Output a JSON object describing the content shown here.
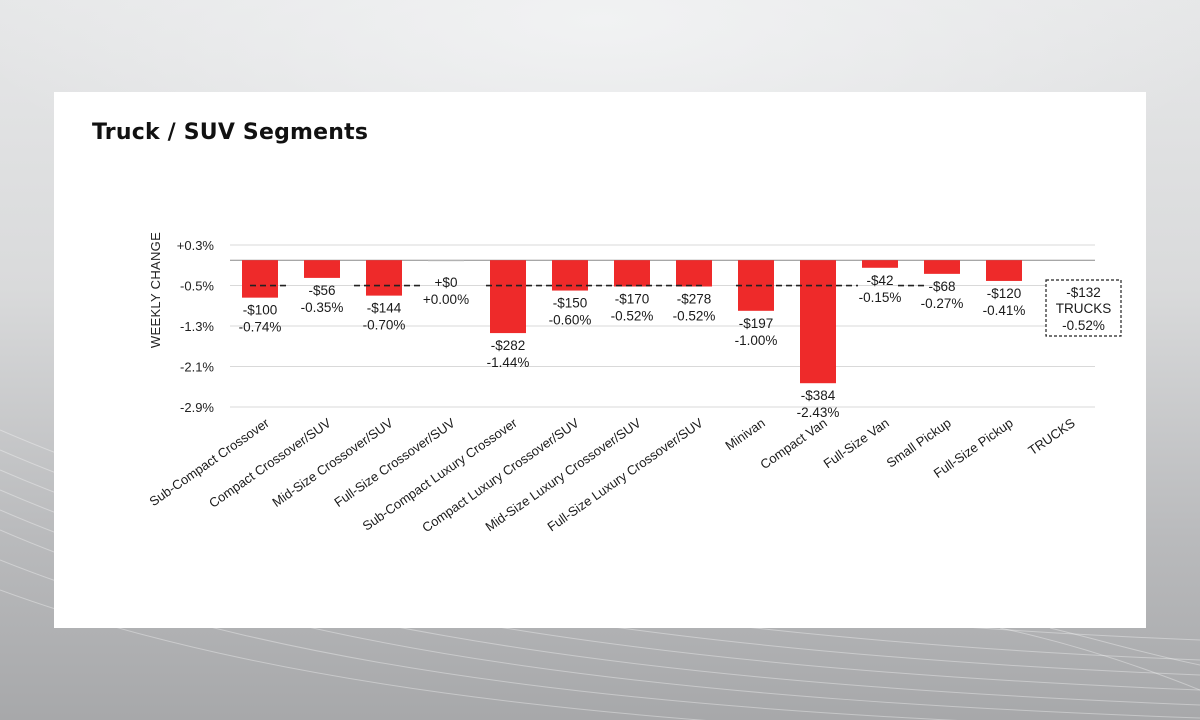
{
  "card": {
    "title": "Truck / SUV Segments"
  },
  "colors": {
    "bar": "#ee2a2a",
    "grid": "#d9d9d9",
    "zero_line": "#8a8a8a",
    "average_line": "#222222"
  },
  "chart_data": {
    "type": "bar",
    "title": "Truck / SUV Segments",
    "xlabel": "",
    "ylabel": "WEEKLY CHANGE",
    "ylim": [
      -2.9,
      0.3
    ],
    "y_ticks": [
      "+0.3%",
      "-0.5%",
      "-1.3%",
      "-2.1%",
      "-2.9%"
    ],
    "y_tick_values": [
      0.3,
      -0.5,
      -1.3,
      -2.1,
      -2.9
    ],
    "grid": true,
    "categories": [
      "Sub-Compact Crossover",
      "Compact Crossover/SUV",
      "Mid-Size Crossover/SUV",
      "Full-Size Crossover/SUV",
      "Sub-Compact Luxury Crossover",
      "Compact Luxury Crossover/SUV",
      "Mid-Size Luxury Crossover/SUV",
      "Full-Size Luxury Crossover/SUV",
      "Minivan",
      "Compact Van",
      "Full-Size Van",
      "Small Pickup",
      "Full-Size Pickup",
      "TRUCKS"
    ],
    "series": [
      {
        "name": "Weekly change (%)",
        "values": [
          -0.74,
          -0.35,
          -0.7,
          0.0,
          -1.44,
          -0.6,
          -0.52,
          -0.52,
          -1.0,
          -2.43,
          -0.15,
          -0.27,
          -0.41,
          null
        ]
      }
    ],
    "dollar_labels": [
      "-$100",
      "-$56",
      "-$144",
      "+$0",
      "-$282",
      "-$150",
      "-$170",
      "-$278",
      "-$197",
      "-$384",
      "-$42",
      "-$68",
      "-$120",
      "-$132"
    ],
    "percent_labels": [
      "-0.74%",
      "-0.35%",
      "-0.70%",
      "+0.00%",
      "-1.44%",
      "-0.60%",
      "-0.52%",
      "-0.52%",
      "-1.00%",
      "-2.43%",
      "-0.15%",
      "-0.27%",
      "-0.41%",
      "-0.52%"
    ],
    "average_line": {
      "label": "TRUCKS",
      "value": -0.52,
      "dollar": "-$132",
      "percent": "-0.52%"
    }
  }
}
